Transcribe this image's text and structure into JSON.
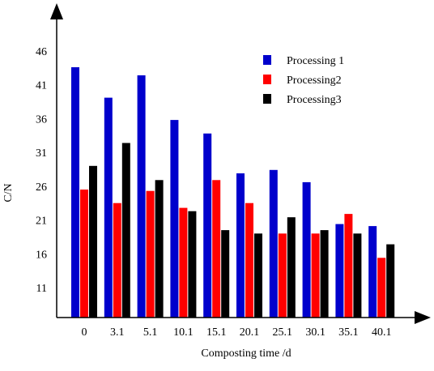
{
  "chart_data": {
    "type": "bar",
    "title": "",
    "xlabel": "Composting time /d",
    "ylabel": "C/N",
    "categories": [
      "0",
      "3.1",
      "5.1",
      "10.1",
      "15.1",
      "20.1",
      "25.1",
      "30.1",
      "35.1",
      "40.1"
    ],
    "yticks": [
      "11",
      "16",
      "21",
      "26",
      "31",
      "36",
      "41",
      "46"
    ],
    "ylim": [
      6,
      51
    ],
    "grid": false,
    "legend_position": "top-right",
    "series": [
      {
        "name": "Processing 1",
        "color": "#0000cc",
        "values": [
          43.6,
          39.1,
          42.4,
          35.8,
          33.8,
          27.9,
          28.4,
          26.6,
          20.4,
          20.1
        ]
      },
      {
        "name": "Processing2",
        "color": "#ff0000",
        "values": [
          25.5,
          23.5,
          25.3,
          22.8,
          26.9,
          23.5,
          19.0,
          19.0,
          21.9,
          15.4
        ]
      },
      {
        "name": "Processing3",
        "color": "#000000",
        "values": [
          29.0,
          32.4,
          26.9,
          22.3,
          19.5,
          19.0,
          21.4,
          19.5,
          19.0,
          17.4
        ]
      }
    ]
  }
}
